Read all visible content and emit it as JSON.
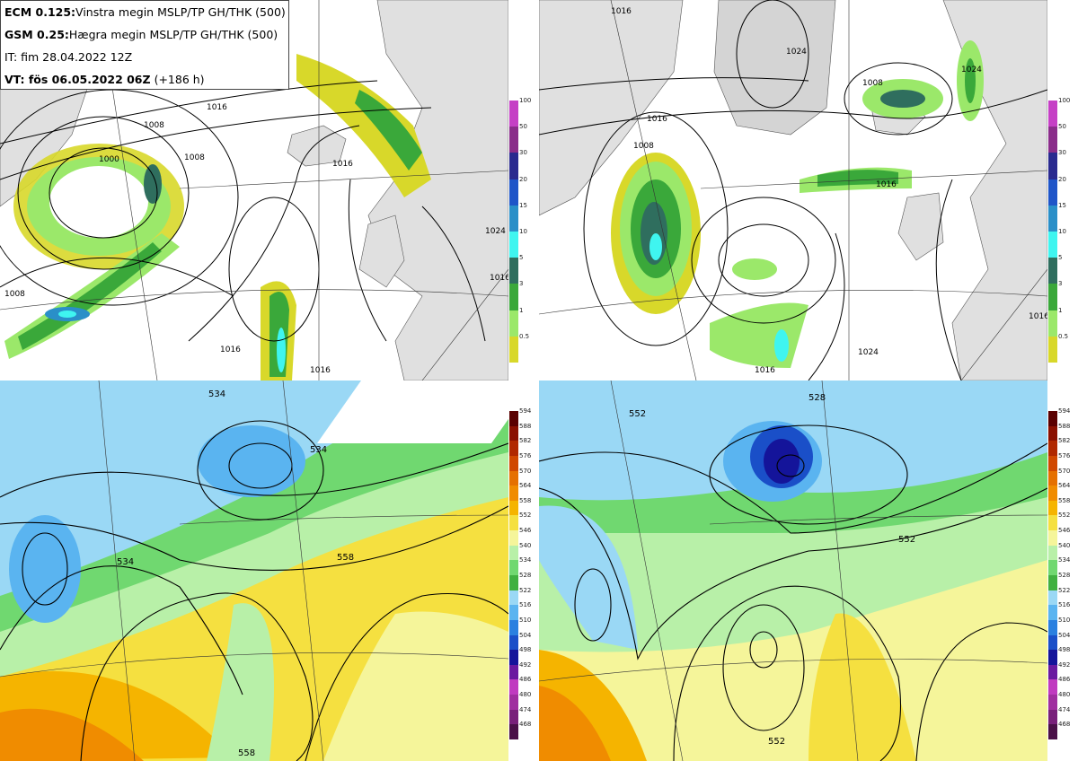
{
  "info": {
    "ecm_model": "ECM 0.125:",
    "ecm_desc": "Vinstra megin MSLP/TP GH/THK (500)",
    "gsm_model": "GSM 0.25:",
    "gsm_desc": "Hægra megin MSLP/TP GH/THK (500)",
    "it": "IT: fim 28.04.2022 12Z",
    "vt_prefix": "VT: fös 06.05.2022 06Z",
    "vt_lead": "(+186 h)"
  },
  "precip_scale": {
    "ticks": [
      "100",
      "50",
      "30",
      "20",
      "15",
      "10",
      "5",
      "3",
      "1",
      "0.5"
    ],
    "colors": [
      "#c540c5",
      "#8a2d8a",
      "#2a2a8f",
      "#1f55c8",
      "#2a8fc8",
      "#3ff5f0",
      "#2f6e5e",
      "#3aa83a",
      "#9be86a",
      "#d8d82a"
    ]
  },
  "thk_scale": {
    "ticks": [
      "594",
      "588",
      "582",
      "576",
      "570",
      "564",
      "558",
      "552",
      "546",
      "540",
      "534",
      "528",
      "522",
      "516",
      "510",
      "504",
      "498",
      "492",
      "486",
      "480",
      "474",
      "468"
    ],
    "colors": [
      "#5a0000",
      "#8a1000",
      "#b02800",
      "#d04800",
      "#e57000",
      "#f08c00",
      "#f5b400",
      "#f5e040",
      "#f5f59a",
      "#b8f0a8",
      "#70d870",
      "#40b040",
      "#9ad8f5",
      "#5ab4f0",
      "#2a80e0",
      "#1a4fc8",
      "#14149a",
      "#6a1aa0",
      "#c03ac0",
      "#a02ea0",
      "#78207a",
      "#4a1048"
    ]
  },
  "map_labels": {
    "tl_isobars": [
      "1000",
      "1008",
      "1016",
      "1016",
      "1024",
      "1016",
      "1008",
      "1016",
      "1008",
      "1016"
    ],
    "tr_isobars": [
      "1016",
      "1024",
      "1016",
      "1008",
      "1008",
      "1016",
      "1016",
      "1024",
      "1016",
      "1024"
    ],
    "bl_heights": [
      "534",
      "534",
      "534",
      "558",
      "558"
    ],
    "br_heights": [
      "552",
      "528",
      "552",
      "552"
    ]
  }
}
